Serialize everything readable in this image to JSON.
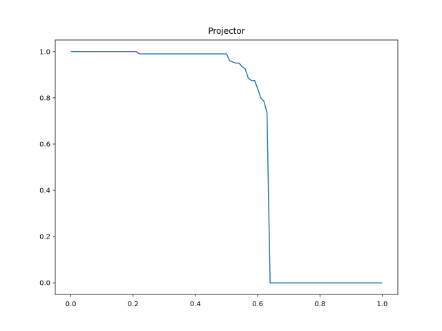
{
  "chart_data": {
    "type": "line",
    "title": "Projector",
    "xlabel": "",
    "ylabel": "",
    "xlim": [
      -0.05,
      1.05
    ],
    "ylim": [
      -0.05,
      1.05
    ],
    "x_ticks": [
      0.0,
      0.2,
      0.4,
      0.6,
      0.8,
      1.0
    ],
    "y_ticks": [
      0.0,
      0.2,
      0.4,
      0.6,
      0.8,
      1.0
    ],
    "x_tick_labels": [
      "0.0",
      "0.2",
      "0.4",
      "0.6",
      "0.8",
      "1.0"
    ],
    "y_tick_labels": [
      "0.0",
      "0.2",
      "0.4",
      "0.6",
      "0.8",
      "1.0"
    ],
    "grid": false,
    "legend": "none",
    "series": [
      {
        "color": "#1f77b4",
        "x": [
          0.0,
          0.21,
          0.22,
          0.5,
          0.51,
          0.53,
          0.54,
          0.55,
          0.56,
          0.57,
          0.58,
          0.59,
          0.6,
          0.61,
          0.62,
          0.63,
          0.64,
          1.0
        ],
        "y": [
          1.0,
          1.0,
          0.99,
          0.99,
          0.96,
          0.95,
          0.95,
          0.935,
          0.925,
          0.885,
          0.875,
          0.875,
          0.84,
          0.8,
          0.785,
          0.735,
          0.0,
          0.0
        ]
      }
    ]
  }
}
